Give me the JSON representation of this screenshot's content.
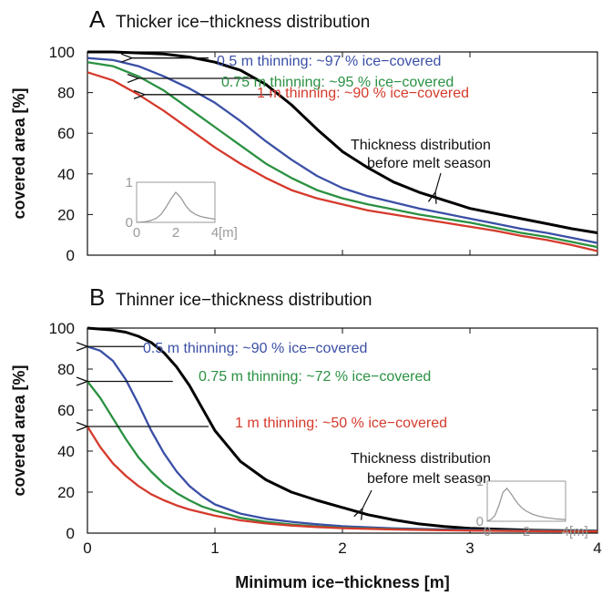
{
  "xlabel": "Minimum ice−thickness [m]",
  "chart_data": [
    {
      "type": "line",
      "panel": "A",
      "title": "Thicker ice−thickness distribution",
      "ylabel": "covered area [%]",
      "xlim": [
        0,
        4
      ],
      "ylim": [
        0,
        100
      ],
      "x_ticks": [
        "0",
        "1",
        "2",
        "3",
        "4"
      ],
      "y_ticks": [
        "0",
        "20",
        "40",
        "60",
        "80",
        "100"
      ],
      "series": [
        {
          "color": "#000000",
          "x": [
            0,
            0.2,
            0.4,
            0.6,
            0.8,
            1.0,
            1.2,
            1.4,
            1.6,
            1.8,
            2.0,
            2.2,
            2.4,
            2.6,
            2.8,
            3.0,
            3.2,
            3.4,
            3.6,
            3.8,
            4.0
          ],
          "y": [
            100,
            100,
            99.5,
            99,
            97.5,
            95,
            91,
            84,
            74,
            62,
            51,
            43,
            36,
            31,
            27,
            23,
            20.5,
            18,
            15.5,
            13,
            11
          ]
        },
        {
          "color": "#3a4fa6",
          "x": [
            0,
            0.2,
            0.4,
            0.6,
            0.8,
            1.0,
            1.2,
            1.4,
            1.6,
            1.8,
            2.0,
            2.2,
            2.4,
            2.6,
            2.8,
            3.0,
            3.2,
            3.4,
            3.6,
            3.8,
            4.0
          ],
          "y": [
            97,
            96,
            93,
            88,
            82,
            75,
            66,
            56,
            47,
            39,
            33,
            29,
            26,
            23,
            20.5,
            18,
            15.5,
            13,
            11,
            8.5,
            6
          ]
        },
        {
          "color": "#2a9142",
          "x": [
            0,
            0.2,
            0.4,
            0.6,
            0.8,
            1.0,
            1.2,
            1.4,
            1.6,
            1.8,
            2.0,
            2.2,
            2.4,
            2.6,
            2.8,
            3.0,
            3.2,
            3.4,
            3.6,
            3.8,
            4.0
          ],
          "y": [
            95,
            93,
            88,
            81,
            72,
            63,
            54,
            45,
            38,
            32,
            28,
            25,
            22.5,
            20,
            18,
            16,
            13.5,
            11,
            9,
            6.5,
            4
          ]
        },
        {
          "color": "#d53a2c",
          "x": [
            0,
            0.2,
            0.4,
            0.6,
            0.8,
            1.0,
            1.2,
            1.4,
            1.6,
            1.8,
            2.0,
            2.2,
            2.4,
            2.6,
            2.8,
            3.0,
            3.2,
            3.4,
            3.6,
            3.8,
            4.0
          ],
          "y": [
            90,
            86,
            79,
            71,
            62,
            53,
            45,
            38,
            32,
            28,
            25,
            22,
            20,
            18,
            16,
            14,
            12,
            9.5,
            7.5,
            5,
            2
          ]
        }
      ],
      "annotations": [
        {
          "text": "0.5 m thinning: ~97 % ice−covered",
          "color": "#3a4fa6"
        },
        {
          "text": "0.75 m thinning: ~95 % ice−covered",
          "color": "#2a9142"
        },
        {
          "text": "1 m thinning: ~90 % ice−covered",
          "color": "#d53a2c"
        },
        {
          "text_line1": "Thickness distribution",
          "text_line2": "before melt season",
          "color": "#111111"
        }
      ],
      "arrows": [
        {
          "from": [
            0.95,
            97
          ],
          "to": [
            0.35,
            97
          ]
        },
        {
          "from": [
            1.3,
            87
          ],
          "to": [
            0.4,
            87
          ]
        },
        {
          "from": [
            1.45,
            79
          ],
          "to": [
            0.45,
            79
          ]
        }
      ],
      "inset": {
        "x_ticks": [
          "0",
          "2",
          "4"
        ],
        "y_ticks": [
          "0",
          "1"
        ],
        "unit": "[m]",
        "xlim": [
          0,
          4
        ],
        "ylim": [
          0,
          1
        ],
        "x": [
          0,
          0.25,
          0.5,
          0.75,
          1.0,
          1.25,
          1.5,
          1.75,
          2.0,
          2.25,
          2.5,
          2.75,
          3.0,
          3.25,
          3.5,
          3.75,
          4.0
        ],
        "y": [
          0,
          0.01,
          0.02,
          0.05,
          0.1,
          0.2,
          0.38,
          0.58,
          0.75,
          0.62,
          0.42,
          0.28,
          0.2,
          0.15,
          0.12,
          0.1,
          0.08
        ]
      }
    },
    {
      "type": "line",
      "panel": "B",
      "title": "Thinner ice−thickness distribution",
      "ylabel": "covered area [%]",
      "xlim": [
        0,
        4
      ],
      "ylim": [
        0,
        100
      ],
      "x_ticks": [
        "0",
        "1",
        "2",
        "3",
        "4"
      ],
      "y_ticks": [
        "0",
        "20",
        "40",
        "60",
        "80",
        "100"
      ],
      "series": [
        {
          "color": "#000000",
          "x": [
            0,
            0.1,
            0.2,
            0.3,
            0.4,
            0.5,
            0.6,
            0.7,
            0.8,
            0.9,
            1.0,
            1.2,
            1.4,
            1.6,
            1.8,
            2.0,
            2.2,
            2.4,
            2.6,
            2.8,
            3.0,
            3.5,
            4.0
          ],
          "y": [
            100,
            99.5,
            99,
            98,
            96,
            93,
            88,
            81,
            72,
            61,
            50,
            35,
            26,
            20,
            16,
            12.5,
            9,
            6.5,
            4.5,
            3.2,
            2.3,
            1.4,
            1
          ]
        },
        {
          "color": "#3a4fa6",
          "x": [
            0,
            0.1,
            0.2,
            0.3,
            0.4,
            0.5,
            0.6,
            0.7,
            0.8,
            0.9,
            1.0,
            1.2,
            1.4,
            1.6,
            1.8,
            2.0,
            2.4,
            2.8,
            3.2,
            3.6,
            4.0
          ],
          "y": [
            91,
            89,
            84,
            75,
            63,
            50,
            39,
            30,
            23,
            18,
            14,
            9.5,
            7,
            5.5,
            4.3,
            3.4,
            2.3,
            1.8,
            1.4,
            1.2,
            1
          ]
        },
        {
          "color": "#2a9142",
          "x": [
            0,
            0.1,
            0.2,
            0.3,
            0.4,
            0.5,
            0.6,
            0.7,
            0.8,
            0.9,
            1.0,
            1.2,
            1.4,
            1.6,
            1.8,
            2.0,
            2.4,
            2.8,
            3.2,
            3.6,
            4.0
          ],
          "y": [
            74,
            66,
            56,
            46,
            37,
            30,
            24,
            19.5,
            16,
            13,
            11,
            7.5,
            5.5,
            4.2,
            3.3,
            2.6,
            1.9,
            1.5,
            1.2,
            1,
            0.9
          ]
        },
        {
          "color": "#d53a2c",
          "x": [
            0,
            0.1,
            0.2,
            0.3,
            0.4,
            0.5,
            0.6,
            0.7,
            0.8,
            0.9,
            1.0,
            1.2,
            1.4,
            1.6,
            1.8,
            2.0,
            2.4,
            2.8,
            3.2,
            3.6,
            4.0
          ],
          "y": [
            52,
            42,
            34,
            28,
            23,
            19,
            16,
            13.5,
            11.5,
            10,
            8.5,
            6.2,
            4.7,
            3.7,
            3,
            2.4,
            1.8,
            1.4,
            1.1,
            0.9,
            0.8
          ]
        }
      ],
      "annotations": [
        {
          "text": "0.5 m thinning: ~90 % ice−covered",
          "color": "#3a4fa6"
        },
        {
          "text": "0.75 m thinning: ~72 % ice−covered",
          "color": "#2a9142"
        },
        {
          "text": "1 m thinning: ~50 % ice−covered",
          "color": "#d53a2c"
        },
        {
          "text_line1": "Thickness distribution",
          "text_line2": "before melt season",
          "color": "#111111"
        }
      ],
      "arrows": [
        {
          "from": [
            0.45,
            91
          ],
          "to": [
            0.0,
            91
          ]
        },
        {
          "from": [
            0.67,
            74
          ],
          "to": [
            0.0,
            74
          ]
        },
        {
          "from": [
            0.95,
            52
          ],
          "to": [
            0.0,
            52
          ]
        }
      ],
      "inset": {
        "x_ticks": [
          "0",
          "2",
          "4"
        ],
        "y_ticks": [
          "0",
          "1"
        ],
        "unit": "[m]",
        "xlim": [
          0,
          4
        ],
        "ylim": [
          0,
          1
        ],
        "x": [
          0,
          0.2,
          0.4,
          0.6,
          0.8,
          1.0,
          1.2,
          1.4,
          1.6,
          1.8,
          2.0,
          2.3,
          2.6,
          3.0,
          3.5,
          4.0
        ],
        "y": [
          0,
          0.05,
          0.15,
          0.4,
          0.72,
          0.82,
          0.7,
          0.55,
          0.42,
          0.32,
          0.25,
          0.18,
          0.13,
          0.09,
          0.06,
          0.04
        ]
      }
    }
  ]
}
